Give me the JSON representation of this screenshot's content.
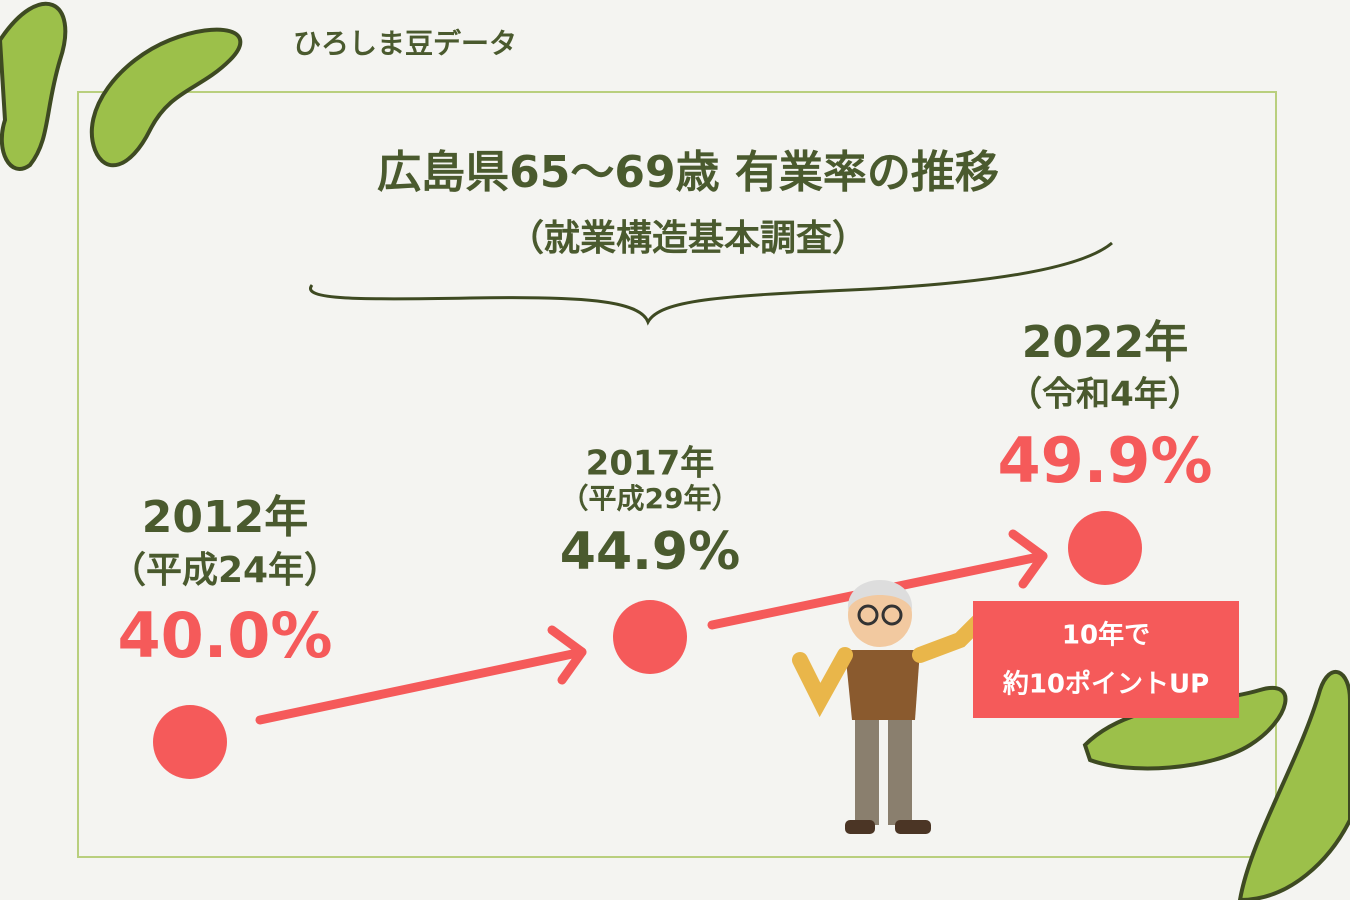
{
  "header": {
    "brand": "ひろしま豆データ"
  },
  "title": {
    "main": "広島県65〜69歳 有業率の推移",
    "sub": "（就業構造基本調査）"
  },
  "points": [
    {
      "year": "2012年",
      "era": "（平成24年）",
      "value": "40.0%"
    },
    {
      "year": "2017年",
      "era": "（平成29年）",
      "value": "44.9%"
    },
    {
      "year": "2022年",
      "era": "（令和4年）",
      "value": "49.9%"
    }
  ],
  "callout": {
    "lines": [
      "10年で",
      "約10ポイントUP"
    ]
  }
}
